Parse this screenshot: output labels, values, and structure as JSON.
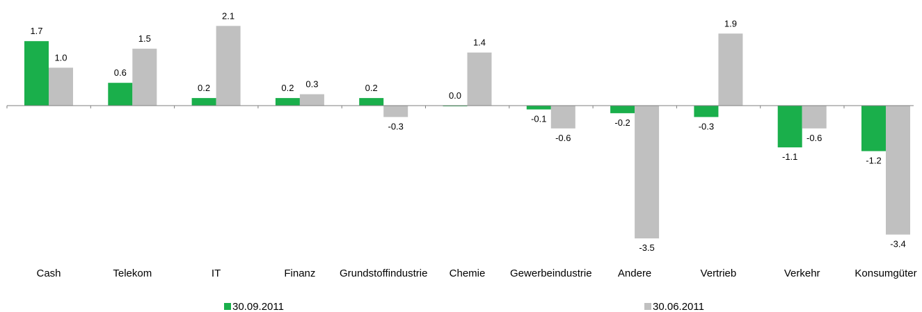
{
  "chart_data": {
    "type": "bar",
    "categories": [
      "Cash",
      "Telekom",
      "IT",
      "Finanz",
      "Grundstoffindustrie",
      "Chemie",
      "Gewerbeindustrie",
      "Andere",
      "Vertrieb",
      "Verkehr",
      "Konsumgüter"
    ],
    "series": [
      {
        "name": "30.09.2011",
        "color": "#1aaf4b",
        "values": [
          1.7,
          0.6,
          0.2,
          0.2,
          0.2,
          0.0,
          -0.1,
          -0.2,
          -0.3,
          -1.1,
          -1.2
        ],
        "labels": [
          "1.7",
          "0.6",
          "0.2",
          "0.2",
          "0.2",
          "0.0",
          "-0.1",
          "-0.2",
          "-0.3",
          "-1.1",
          "-1.2"
        ]
      },
      {
        "name": "30.06.2011",
        "color": "#c0c0c0",
        "values": [
          1.0,
          1.5,
          2.1,
          0.3,
          -0.3,
          1.4,
          -0.6,
          -3.5,
          1.9,
          -0.6,
          -3.4
        ],
        "labels": [
          "1.0",
          "1.5",
          "2.1",
          "0.3",
          "-0.3",
          "1.4",
          "-0.6",
          "-3.5",
          "1.9",
          "-0.6",
          "-3.4"
        ]
      }
    ],
    "legend_position": "bottom",
    "ylim": [
      -3.5,
      2.1
    ],
    "grid": false
  }
}
